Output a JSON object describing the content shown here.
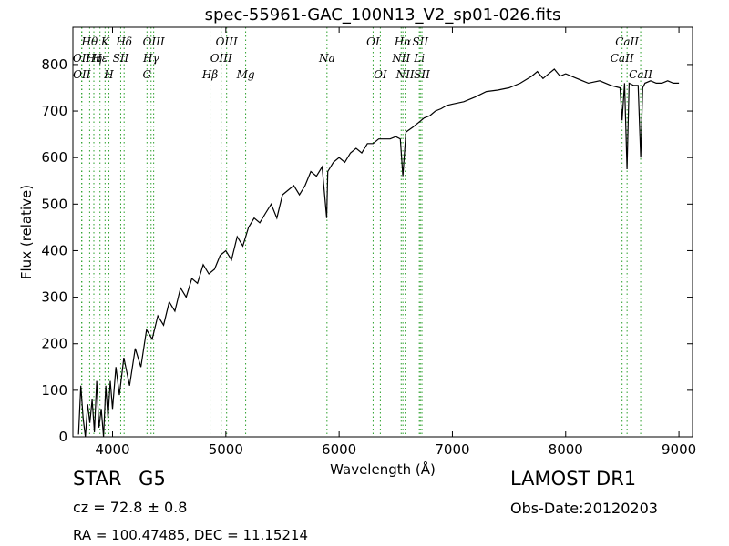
{
  "chart_data": {
    "type": "line",
    "title": "spec-55961-GAC_100N13_V2_sp01-026.fits",
    "xlabel": "Wavelength (Å)",
    "ylabel": "Flux (relative)",
    "xlim": [
      3650,
      9120
    ],
    "ylim": [
      0,
      880
    ],
    "x_ticks": [
      4000,
      5000,
      6000,
      7000,
      8000,
      9000
    ],
    "y_ticks": [
      0,
      100,
      200,
      300,
      400,
      500,
      600,
      700,
      800
    ],
    "grid": false,
    "line_color": "#000000",
    "marker_line_color": "#2ca02c",
    "series": [
      {
        "x": [
          3700,
          3720,
          3740,
          3760,
          3780,
          3800,
          3820,
          3840,
          3860,
          3880,
          3900,
          3920,
          3940,
          3960,
          3980,
          4000,
          4030,
          4060,
          4100,
          4150,
          4200,
          4250,
          4300,
          4350,
          4400,
          4450,
          4500,
          4550,
          4600,
          4650,
          4700,
          4750,
          4800,
          4850,
          4900,
          4950,
          5000,
          5050,
          5100,
          5150,
          5200,
          5250,
          5300,
          5350,
          5400,
          5450,
          5500,
          5550,
          5600,
          5650,
          5700,
          5750,
          5800,
          5850,
          5890,
          5900,
          5950,
          6000,
          6050,
          6100,
          6150,
          6200,
          6250,
          6300,
          6350,
          6400,
          6450,
          6500,
          6540,
          6563,
          6590,
          6620,
          6650,
          6700,
          6750,
          6800,
          6850,
          6900,
          6950,
          7000,
          7100,
          7200,
          7300,
          7400,
          7500,
          7600,
          7700,
          7750,
          7800,
          7850,
          7900,
          7950,
          8000,
          8100,
          8200,
          8300,
          8400,
          8480,
          8498,
          8520,
          8542,
          8560,
          8600,
          8640,
          8662,
          8680,
          8700,
          8750,
          8800,
          8850,
          8900,
          8950,
          9000
        ],
        "y": [
          5,
          110,
          40,
          0,
          70,
          30,
          80,
          10,
          120,
          20,
          60,
          0,
          110,
          40,
          120,
          60,
          150,
          90,
          170,
          110,
          190,
          150,
          230,
          210,
          260,
          240,
          290,
          270,
          320,
          300,
          340,
          330,
          370,
          350,
          360,
          390,
          400,
          380,
          430,
          410,
          450,
          470,
          460,
          480,
          500,
          470,
          520,
          530,
          540,
          520,
          540,
          570,
          560,
          580,
          470,
          570,
          590,
          600,
          590,
          610,
          620,
          610,
          630,
          630,
          640,
          640,
          640,
          645,
          640,
          560,
          655,
          660,
          665,
          675,
          685,
          690,
          700,
          705,
          712,
          715,
          720,
          730,
          742,
          745,
          750,
          760,
          775,
          785,
          770,
          780,
          790,
          775,
          780,
          770,
          760,
          765,
          755,
          750,
          680,
          760,
          575,
          760,
          755,
          755,
          600,
          750,
          760,
          765,
          760,
          760,
          765,
          760,
          760
        ]
      }
    ],
    "lines": [
      {
        "name": "Hθ",
        "x": 3798,
        "row": 1
      },
      {
        "name": "K",
        "x": 3934,
        "row": 1
      },
      {
        "name": "Hδ",
        "x": 4102,
        "row": 1
      },
      {
        "name": "OIII",
        "x": 4363,
        "row": 1
      },
      {
        "name": "OIII",
        "x": 5007,
        "row": 1
      },
      {
        "name": "OI",
        "x": 6300,
        "row": 1
      },
      {
        "name": "Hα",
        "x": 6563,
        "row": 1
      },
      {
        "name": "SII",
        "x": 6717,
        "row": 1
      },
      {
        "name": "CaII",
        "x": 8542,
        "row": 1
      },
      {
        "name": "OII",
        "x": 3727,
        "row": 2
      },
      {
        "name": "Hε",
        "x": 3889,
        "row": 2
      },
      {
        "name": "SII",
        "x": 4072,
        "row": 2
      },
      {
        "name": "Hγ",
        "x": 4340,
        "row": 2
      },
      {
        "name": "NII",
        "x": 6548,
        "row": 2
      },
      {
        "name": "Li",
        "x": 6708,
        "row": 2
      },
      {
        "name": "CaII",
        "x": 8498,
        "row": 2
      },
      {
        "name": "Hη",
        "x": 3835,
        "row": 3
      },
      {
        "name": "OIII",
        "x": 4959,
        "row": 3
      },
      {
        "name": "OII",
        "x": 3729,
        "row": 4
      },
      {
        "name": "H",
        "x": 3968,
        "row": 4
      },
      {
        "name": "G",
        "x": 4304,
        "row": 4
      },
      {
        "name": "Hβ",
        "x": 4861,
        "row": 4
      },
      {
        "name": "Mg",
        "x": 5175,
        "row": 4
      },
      {
        "name": "Na",
        "x": 5893,
        "row": 3
      },
      {
        "name": "OI",
        "x": 6364,
        "row": 4
      },
      {
        "name": "NII",
        "x": 6583,
        "row": 4
      },
      {
        "name": "SII",
        "x": 6731,
        "row": 4
      },
      {
        "name": "CaII",
        "x": 8662,
        "row": 4
      }
    ]
  },
  "info": {
    "class_label": "STAR",
    "subclass": "G5",
    "survey": "LAMOST DR1",
    "cz": "cz = 72.8 ± 0.8",
    "obs_date": "Obs-Date:20120203",
    "coords": "RA = 100.47485, DEC = 11.15214"
  }
}
